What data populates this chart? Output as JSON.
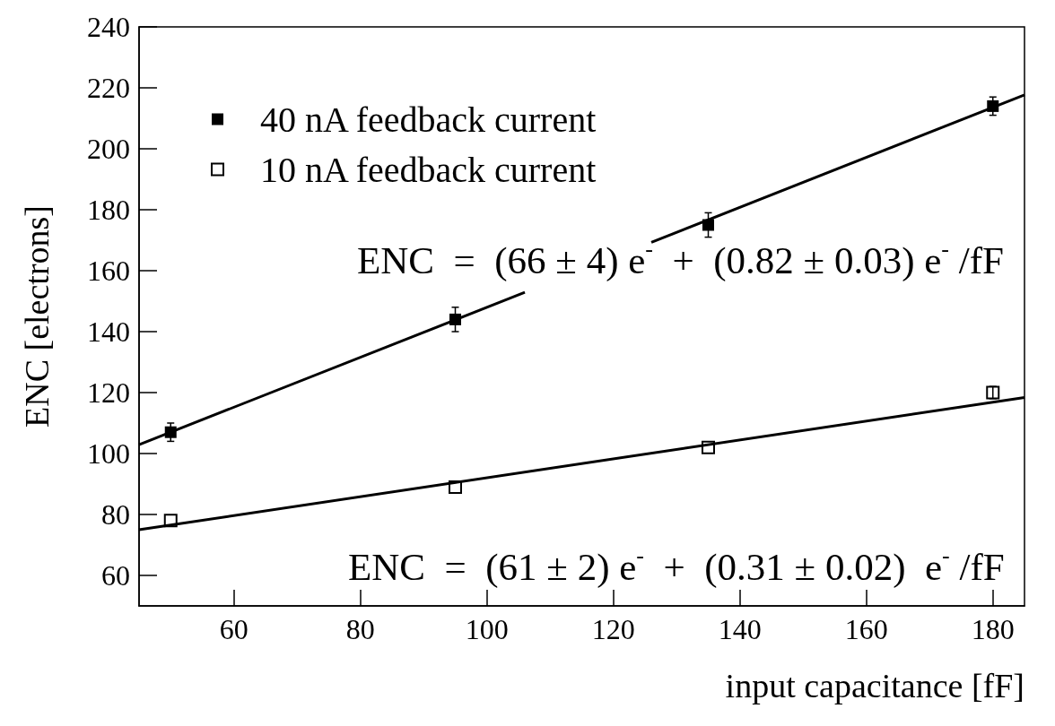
{
  "chart_data": {
    "type": "scatter",
    "xlabel": "input capacitance [fF]",
    "ylabel": "ENC [electrons]",
    "xlim": [
      45,
      185
    ],
    "xticks": [
      60,
      80,
      100,
      120,
      140,
      160,
      180
    ],
    "ylim": [
      50,
      240
    ],
    "yticks": [
      60,
      80,
      100,
      120,
      140,
      160,
      180,
      200,
      220,
      240
    ],
    "grid": false,
    "legend": "top left",
    "marker": "square",
    "series": [
      {
        "name": "40 nA feedback current",
        "color": "#000000",
        "x": [
          50,
          95,
          135,
          180
        ],
        "values": [
          107,
          144,
          175,
          214
        ],
        "errors": [
          3,
          4,
          4,
          3
        ]
      },
      {
        "name": "10 nA feedback current",
        "color": "#000000",
        "x": [
          50,
          95,
          135,
          180
        ],
        "values": [
          78,
          89,
          102,
          120
        ],
        "errors": [
          null,
          null,
          null,
          2
        ]
      },
      {
        "type": "line",
        "color": "#000000",
        "marker": "none",
        "x": [
          45,
          106
        ],
        "values": [
          102.9,
          152.9
        ]
      },
      {
        "type": "line",
        "color": "#000000",
        "marker": "none",
        "x": [
          126,
          185
        ],
        "values": [
          169.3,
          217.7
        ]
      },
      {
        "type": "line",
        "color": "#000000",
        "marker": "none",
        "x": [
          45,
          185
        ],
        "values": [
          75,
          118.4
        ]
      }
    ],
    "annotations": [
      "ENC  =  (66 ± 4) e$^{-}$  +  (0.82 ± 0.03) e$^{-}$ /fF",
      "ENC  =  (61 ± 2) e$^{-}$  +  (0.31 ± 0.02)  e$^{-}$ /fF"
    ]
  }
}
